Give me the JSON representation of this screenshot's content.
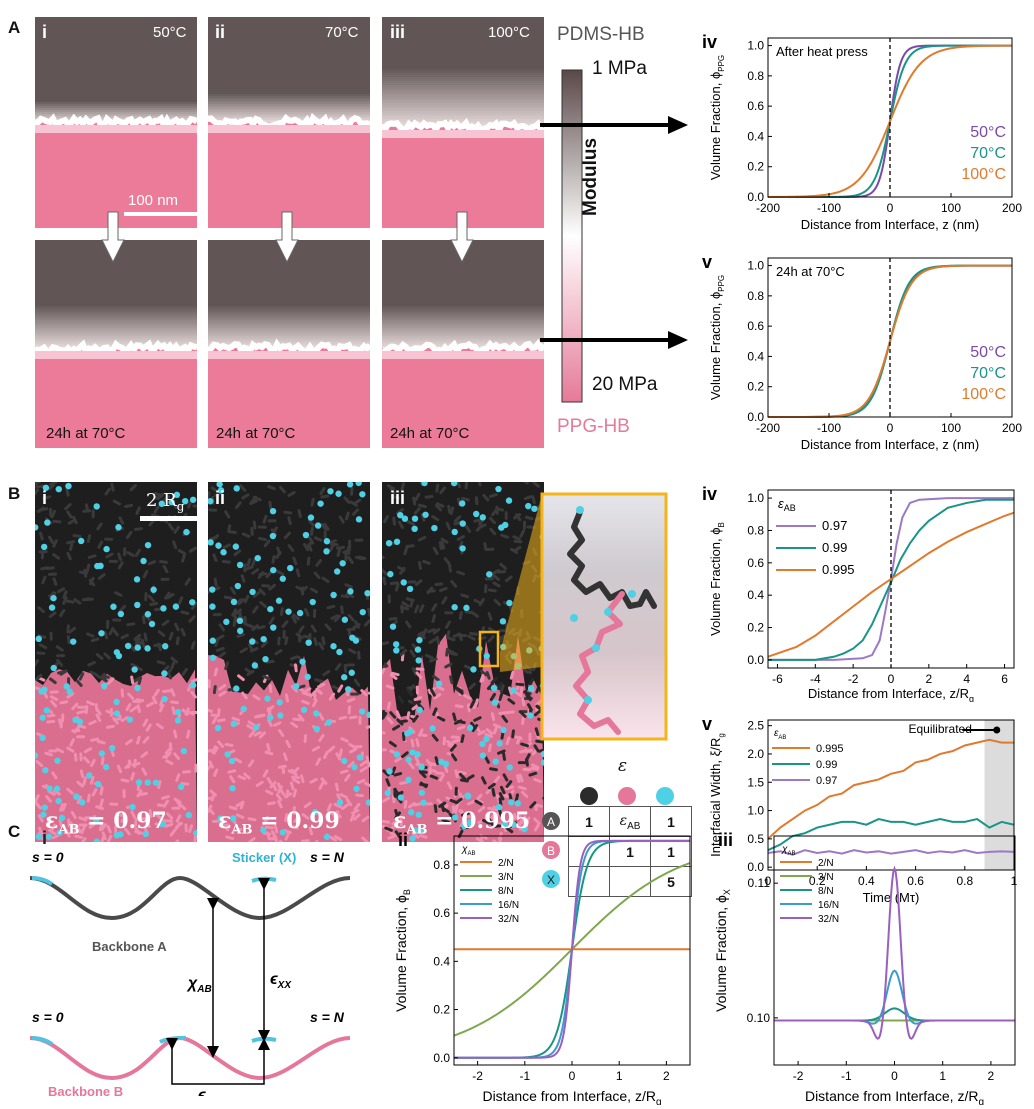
{
  "panel_letters": {
    "a": "A",
    "b": "B",
    "c": "C"
  },
  "panel_a": {
    "tiles": [
      {
        "roman": "i",
        "temp": "50°C"
      },
      {
        "roman": "ii",
        "temp": "70°C"
      },
      {
        "roman": "iii",
        "temp": "100°C"
      }
    ],
    "scalebar": "100 nm",
    "bottom_caption": "24h at 70°C",
    "colorbar": {
      "top_label": "PDMS-HB",
      "max": "1 MPa",
      "min": "20 MPa",
      "axis": "Modulus",
      "bottom_label": "PPG-HB",
      "colors": {
        "top": "#5a4848",
        "mid": "#ffffff",
        "bottom": "#e57a99"
      }
    },
    "colors": {
      "pdms": "#615454",
      "ppg": "#ec7b9a",
      "interface": "#ffffff"
    }
  },
  "panel_b": {
    "tiles": [
      {
        "roman": "i",
        "eps": "0.97"
      },
      {
        "roman": "ii",
        "eps": "0.99"
      },
      {
        "roman": "iii",
        "eps": "0.995"
      }
    ],
    "eps_prefix": "ε",
    "eps_sub": "AB",
    "scalebar": "2 R",
    "scalebar_sub": "g",
    "matrix": {
      "header": "ε",
      "rows": [
        {
          "label": "A",
          "cells": [
            "1",
            "ε_AB",
            "1"
          ]
        },
        {
          "label": "B",
          "cells": [
            "",
            "1",
            "1"
          ]
        },
        {
          "label": "X",
          "cells": [
            "",
            "",
            "5"
          ]
        }
      ]
    },
    "colors": {
      "a_bead": "#2b2b2b",
      "b_bead": "#e5779a",
      "x_bead": "#4fd0e4",
      "zoom_frame": "#f4b41a"
    }
  },
  "panel_c": {
    "schematic": {
      "roman": "i",
      "s0": "s = 0",
      "sN": "s = N",
      "sticker": "Sticker (X)",
      "backbone_a": "Backbone A",
      "backbone_b": "Backbone B",
      "chi": "χ",
      "chi_sub": "AB",
      "eps": "ϵ",
      "eps_sub": "XX",
      "colors": {
        "a": "#4a4a4a",
        "b": "#e5779a",
        "x": "#4fc3e0"
      }
    }
  },
  "chart_data": [
    {
      "id": "A-iv",
      "roman": "iv",
      "type": "line",
      "annotation": "After heat press",
      "xlabel": "Distance from Interface, z (nm)",
      "ylabel": "Volume Fraction, ϕ",
      "ylabel_sub": "PPG",
      "xlim": [
        -200,
        200
      ],
      "ylim": [
        0,
        1.05
      ],
      "xticks": [
        -200,
        -100,
        0,
        100,
        200
      ],
      "yticks": [
        0,
        0.2,
        0.4,
        0.6,
        0.8,
        1.0
      ],
      "vline": 0,
      "legend_position": "bottom-right",
      "series": [
        {
          "name": "50°C",
          "color": "#7b4aa8",
          "model": "tanh",
          "width_param": 17
        },
        {
          "name": "70°C",
          "color": "#1a9488",
          "model": "tanh",
          "width_param": 25
        },
        {
          "name": "100°C",
          "color": "#e07a2c",
          "model": "tanh",
          "width_param": 50
        }
      ]
    },
    {
      "id": "A-v",
      "roman": "v",
      "type": "line",
      "annotation": "24h at 70°C",
      "xlabel": "Distance from Interface, z (nm)",
      "ylabel": "Volume Fraction, ϕ",
      "ylabel_sub": "PPG",
      "xlim": [
        -200,
        200
      ],
      "ylim": [
        0,
        1.05
      ],
      "xticks": [
        -200,
        -100,
        0,
        100,
        200
      ],
      "yticks": [
        0,
        0.2,
        0.4,
        0.6,
        0.8,
        1.0
      ],
      "vline": 0,
      "legend_position": "bottom-right",
      "series": [
        {
          "name": "50°C",
          "color": "#7b4aa8",
          "model": "tanh",
          "width_param": 33
        },
        {
          "name": "70°C",
          "color": "#1a9488",
          "model": "tanh",
          "width_param": 31
        },
        {
          "name": "100°C",
          "color": "#e07a2c",
          "model": "tanh",
          "width_param": 35
        }
      ]
    },
    {
      "id": "B-iv",
      "roman": "iv",
      "type": "line",
      "legend_title": "ε",
      "legend_title_sub": "AB",
      "xlabel": "Distance from Interface, z/R",
      "xlabel_sub": "g",
      "ylabel": "Volume Fraction, ϕ",
      "ylabel_sub": "B",
      "xlim": [
        -6.5,
        6.5
      ],
      "ylim": [
        -0.05,
        1.05
      ],
      "xticks": [
        -6,
        -4,
        -2,
        0,
        2,
        4,
        6
      ],
      "yticks": [
        0,
        0.2,
        0.4,
        0.6,
        0.8,
        1.0
      ],
      "vline": 0,
      "legend_position": "top-left",
      "series": [
        {
          "name": "0.97",
          "color": "#9b79c7",
          "x": [
            -6.5,
            -3,
            -1.5,
            -1,
            -0.6,
            -0.3,
            0,
            0.3,
            0.6,
            1,
            1.5,
            3,
            6.5
          ],
          "y": [
            0,
            0,
            0.01,
            0.03,
            0.12,
            0.3,
            0.5,
            0.72,
            0.88,
            0.97,
            0.99,
            1.0,
            1.0
          ]
        },
        {
          "name": "0.99",
          "color": "#1a9488",
          "x": [
            -6.5,
            -4,
            -3,
            -2.5,
            -2,
            -1.5,
            -1,
            -0.5,
            0,
            0.5,
            1,
            1.5,
            2,
            3,
            4,
            5,
            6.5
          ],
          "y": [
            0.0,
            0.0,
            0.02,
            0.04,
            0.07,
            0.12,
            0.22,
            0.35,
            0.48,
            0.62,
            0.72,
            0.8,
            0.86,
            0.94,
            0.97,
            0.99,
            0.99
          ]
        },
        {
          "name": "0.995",
          "color": "#e07a2c",
          "x": [
            -6.5,
            -6,
            -5,
            -4,
            -3,
            -2,
            -1,
            0,
            1,
            2,
            3,
            4,
            5,
            6,
            6.5
          ],
          "y": [
            0.02,
            0.04,
            0.08,
            0.15,
            0.24,
            0.33,
            0.42,
            0.5,
            0.58,
            0.66,
            0.73,
            0.79,
            0.84,
            0.89,
            0.91
          ]
        }
      ]
    },
    {
      "id": "B-v",
      "roman": "v",
      "type": "line",
      "legend_title": "ε",
      "legend_title_sub": "AB",
      "annotation": "Equilibrated",
      "xlabel": "Time (Mτ)",
      "ylabel": "Interfacial Width, ξ/R",
      "ylabel_sub": "g",
      "xlim": [
        0,
        1.0
      ],
      "ylim": [
        -0.05,
        2.6
      ],
      "xticks": [
        0,
        0.2,
        0.4,
        0.6,
        0.8,
        1.0
      ],
      "yticks": [
        0,
        0.5,
        1.0,
        1.5,
        2.0,
        2.5
      ],
      "shaded_x": [
        0.88,
        1.0
      ],
      "legend_position": "top-left",
      "series": [
        {
          "name": "0.995",
          "color": "#e07a2c",
          "x": [
            0,
            0.05,
            0.1,
            0.15,
            0.2,
            0.25,
            0.3,
            0.35,
            0.4,
            0.45,
            0.5,
            0.55,
            0.6,
            0.65,
            0.7,
            0.75,
            0.8,
            0.85,
            0.9,
            0.95,
            1.0
          ],
          "y": [
            0.5,
            0.7,
            0.85,
            1.0,
            1.1,
            1.25,
            1.3,
            1.45,
            1.5,
            1.55,
            1.65,
            1.7,
            1.85,
            1.9,
            2.0,
            2.05,
            2.15,
            2.2,
            2.25,
            2.2,
            2.2
          ]
        },
        {
          "name": "0.99",
          "color": "#1a9488",
          "x": [
            0,
            0.05,
            0.1,
            0.15,
            0.2,
            0.25,
            0.3,
            0.35,
            0.4,
            0.45,
            0.5,
            0.55,
            0.6,
            0.65,
            0.7,
            0.75,
            0.8,
            0.85,
            0.9,
            0.95,
            1.0
          ],
          "y": [
            0.3,
            0.4,
            0.55,
            0.6,
            0.7,
            0.75,
            0.8,
            0.8,
            0.75,
            0.85,
            0.8,
            0.8,
            0.75,
            0.8,
            0.85,
            0.8,
            0.8,
            0.85,
            0.7,
            0.8,
            0.75
          ]
        },
        {
          "name": "0.97",
          "color": "#9b79c7",
          "x": [
            0,
            0.05,
            0.1,
            0.15,
            0.2,
            0.25,
            0.3,
            0.35,
            0.4,
            0.45,
            0.5,
            0.55,
            0.6,
            0.65,
            0.7,
            0.75,
            0.8,
            0.85,
            0.9,
            0.95,
            1.0
          ],
          "y": [
            0.25,
            0.28,
            0.22,
            0.3,
            0.25,
            0.28,
            0.24,
            0.3,
            0.26,
            0.28,
            0.24,
            0.27,
            0.3,
            0.25,
            0.28,
            0.26,
            0.3,
            0.25,
            0.27,
            0.28,
            0.27
          ]
        }
      ]
    },
    {
      "id": "C-ii",
      "roman": "ii",
      "type": "line",
      "legend_title": "χ",
      "legend_title_sub": "AB",
      "xlabel": "Distance from Interface, z/R",
      "xlabel_sub": "g",
      "ylabel": "Volume Fraction, ϕ",
      "ylabel_sub": "B",
      "xlim": [
        -2.5,
        2.5
      ],
      "ylim": [
        -0.03,
        0.92
      ],
      "xticks": [
        -2,
        -1,
        0,
        1,
        2
      ],
      "yticks": [
        0,
        0.2,
        0.4,
        0.6,
        0.8
      ],
      "legend_position": "top-left",
      "series": [
        {
          "name": "2/N",
          "color": "#e07a2c",
          "model": "flat",
          "level": 0.45
        },
        {
          "name": "3/N",
          "color": "#7fa84e",
          "model": "tanh_c",
          "amp": 0.45,
          "width_param": 2.3
        },
        {
          "name": "8/N",
          "color": "#1a9488",
          "model": "tanh_c",
          "amp": 0.45,
          "width_param": 0.32
        },
        {
          "name": "16/N",
          "color": "#3b9bd0",
          "model": "tanh_c",
          "amp": 0.45,
          "width_param": 0.22
        },
        {
          "name": "32/N",
          "color": "#9b5fc0",
          "model": "tanh_c",
          "amp": 0.45,
          "width_param": 0.17
        }
      ]
    },
    {
      "id": "C-iii",
      "roman": "iii",
      "type": "line",
      "legend_title": "χ",
      "legend_title_sub": "AB",
      "xlabel": "Distance from Interface, z/R",
      "xlabel_sub": "g",
      "ylabel": "Volume Fraction, ϕ",
      "ylabel_sub": "X",
      "xlim": [
        -2.5,
        2.5
      ],
      "ylim": [
        0.0965,
        0.1135
      ],
      "xticks": [
        -2,
        -1,
        0,
        1,
        2
      ],
      "yticks": [
        0.1,
        0.11
      ],
      "legend_position": "top-left",
      "series": [
        {
          "name": "2/N",
          "color": "#e07a2c",
          "model": "flat",
          "level": 0.0998
        },
        {
          "name": "3/N",
          "color": "#7fa84e",
          "model": "flat",
          "level": 0.0998
        },
        {
          "name": "8/N",
          "color": "#1a9488",
          "model": "peak",
          "base": 0.0998,
          "amp": 0.0009,
          "w": 0.2,
          "dip": 0.0
        },
        {
          "name": "16/N",
          "color": "#3b9bd0",
          "model": "peak",
          "base": 0.0998,
          "amp": 0.0037,
          "w": 0.15,
          "dip": 0.0003
        },
        {
          "name": "32/N",
          "color": "#9b5fc0",
          "model": "peak",
          "base": 0.0998,
          "amp": 0.0113,
          "w": 0.12,
          "dip": 0.0016
        }
      ]
    }
  ]
}
